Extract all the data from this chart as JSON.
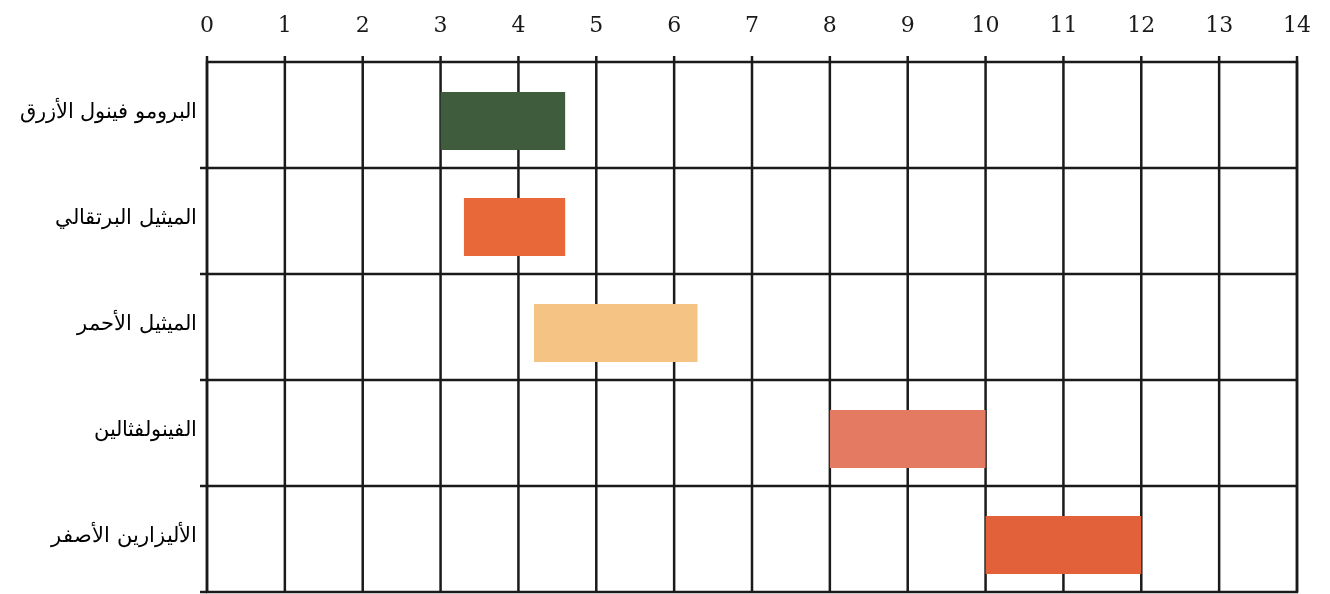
{
  "chart_data": {
    "type": "bar",
    "orientation": "horizontal",
    "categories": [
      "البرومو فينول الأزرق",
      "الميثيل البرتقالي",
      "الميثيل الأحمر",
      "الفينولفثالين",
      "الأليزارين الأصفر"
    ],
    "base": [
      3.0,
      3.3,
      4.2,
      8.0,
      10.0
    ],
    "values": [
      1.6,
      1.3,
      2.1,
      2.0,
      2.0
    ],
    "colors": [
      "#3f5c3c",
      "#e8683a",
      "#f5c384",
      "#e47a62",
      "#e2603a"
    ],
    "xlim": [
      0,
      14
    ],
    "xticks": [
      0,
      1,
      2,
      3,
      4,
      5,
      6,
      7,
      8,
      9,
      10,
      11,
      12,
      13,
      14
    ],
    "grid": true
  }
}
